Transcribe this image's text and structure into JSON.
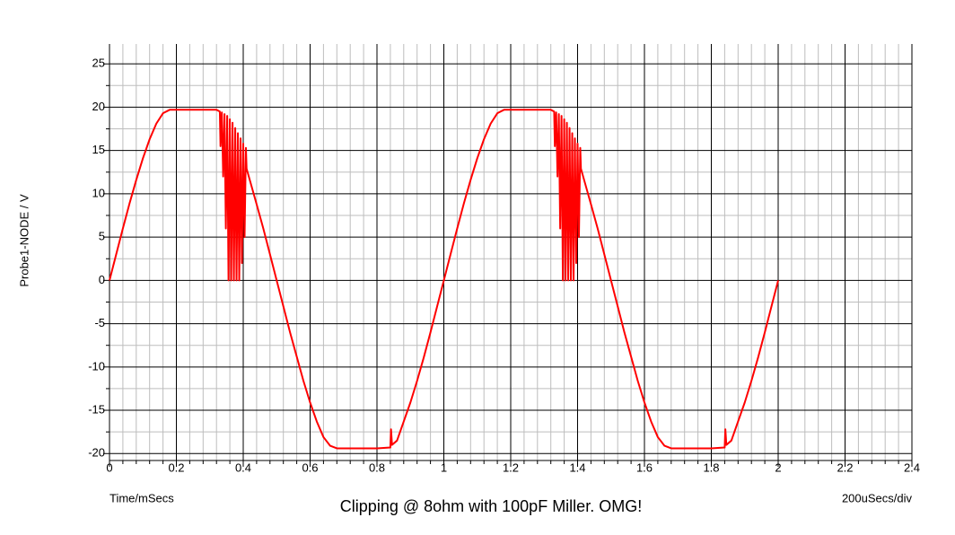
{
  "chart_data": {
    "type": "line",
    "title": "Clipping @ 8ohm with 100pF Miller. OMG!",
    "y_label": "Probe1-NODE / V",
    "x_label": "Time/mSecs",
    "x_scale_note": "200uSecs/div",
    "grid": true,
    "xlim": [
      0,
      2.4
    ],
    "xticks": [
      0,
      0.2,
      0.4,
      0.6,
      0.8,
      1,
      1.2,
      1.4,
      1.6,
      1.8,
      2,
      2.2,
      2.4
    ],
    "ylim": [
      -20.8,
      27.3
    ],
    "yticks": [
      -20,
      -15,
      -10,
      -5,
      0,
      5,
      10,
      15,
      20,
      25
    ],
    "series": [
      {
        "name": "Probe1-NODE",
        "color": "#ff0000",
        "x": [
          0,
          0.02,
          0.04,
          0.06,
          0.08,
          0.1,
          0.12,
          0.14,
          0.16,
          0.18,
          0.32,
          0.33,
          0.332,
          0.336,
          0.34,
          0.344,
          0.348,
          0.352,
          0.356,
          0.36,
          0.364,
          0.368,
          0.372,
          0.376,
          0.38,
          0.384,
          0.388,
          0.392,
          0.396,
          0.4,
          0.404,
          0.408,
          0.41,
          0.44,
          0.46,
          0.48,
          0.5,
          0.52,
          0.54,
          0.56,
          0.58,
          0.6,
          0.62,
          0.64,
          0.66,
          0.68,
          0.8,
          0.84,
          0.842,
          0.845,
          0.86,
          0.88,
          0.9,
          0.92,
          0.94,
          0.96,
          0.98,
          1,
          1.02,
          1.04,
          1.06,
          1.08,
          1.1,
          1.12,
          1.14,
          1.16,
          1.18,
          1.32,
          1.33,
          1.332,
          1.336,
          1.34,
          1.344,
          1.348,
          1.352,
          1.356,
          1.36,
          1.364,
          1.368,
          1.372,
          1.376,
          1.38,
          1.384,
          1.388,
          1.392,
          1.396,
          1.4,
          1.404,
          1.408,
          1.41,
          1.44,
          1.46,
          1.48,
          1.5,
          1.52,
          1.54,
          1.56,
          1.58,
          1.6,
          1.62,
          1.64,
          1.66,
          1.68,
          1.8,
          1.84,
          1.842,
          1.845,
          1.86,
          1.88,
          1.9,
          1.92,
          1.94,
          1.96,
          1.98,
          2
        ],
        "values": [
          0,
          3.0,
          6.0,
          8.9,
          11.6,
          14.1,
          16.3,
          18.1,
          19.3,
          19.7,
          19.7,
          19.5,
          15.5,
          19.4,
          12,
          19.2,
          6,
          19,
          0,
          18.6,
          0,
          18.2,
          0,
          17.6,
          0,
          17,
          0,
          16.4,
          2,
          15.8,
          5,
          15.3,
          12.9,
          8.8,
          6.0,
          3.0,
          0,
          -3.0,
          -6.0,
          -8.8,
          -11.6,
          -14.1,
          -16.3,
          -18.1,
          -19.1,
          -19.4,
          -19.4,
          -19.3,
          -17.2,
          -19.0,
          -18.5,
          -16.3,
          -14.1,
          -11.6,
          -8.9,
          -6.0,
          -3.0,
          0,
          3.0,
          6.0,
          8.9,
          11.6,
          14.1,
          16.3,
          18.1,
          19.3,
          19.7,
          19.7,
          19.5,
          15.5,
          19.4,
          12,
          19.2,
          6,
          19,
          0,
          18.6,
          0,
          18.2,
          0,
          17.6,
          0,
          17,
          0,
          16.4,
          2,
          15.8,
          5,
          15.3,
          12.9,
          8.8,
          6.0,
          3.0,
          0,
          -3.0,
          -6.0,
          -8.8,
          -11.6,
          -14.1,
          -16.3,
          -18.1,
          -19.1,
          -19.4,
          -19.4,
          -19.3,
          -17.2,
          -19.0,
          -18.5,
          -16.3,
          -14.1,
          -11.6,
          -8.9,
          -6.0,
          -3.0,
          0
        ]
      }
    ]
  }
}
